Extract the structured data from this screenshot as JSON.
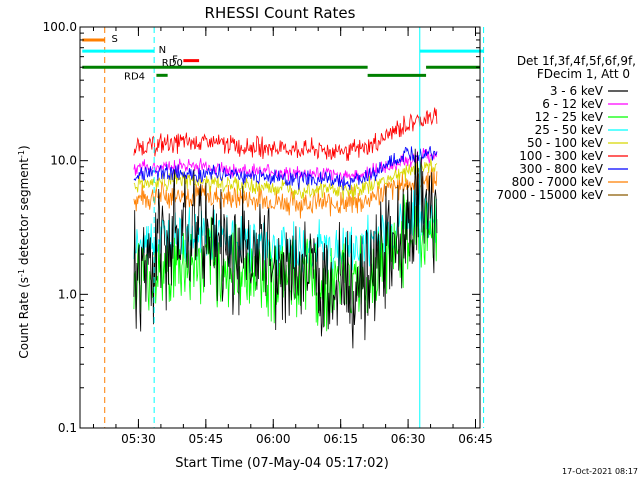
{
  "chart_data": {
    "type": "line",
    "title": "RHESSI Count Rates",
    "xlabel": "Start Time (07-May-04 05:17:02)",
    "ylabel": "Count Rate (s⁻¹ detector segment⁻¹)",
    "ylabel_parts": {
      "main": "Count Rate (s",
      "sup1": "-1",
      "mid": " detector segment",
      "sup2": "-1",
      "end": ")"
    },
    "x_unit": "minutes since 05:17:02",
    "xlim": [
      0,
      89
    ],
    "ylim": [
      0.1,
      100
    ],
    "y_scale": "log",
    "x_ticks": [
      {
        "x": 13,
        "label": "05:30"
      },
      {
        "x": 28,
        "label": "05:45"
      },
      {
        "x": 43,
        "label": "06:00"
      },
      {
        "x": 58,
        "label": "06:15"
      },
      {
        "x": 73,
        "label": "06:30"
      },
      {
        "x": 88,
        "label": "06:45"
      }
    ],
    "y_ticks": [
      {
        "y": 0.1,
        "label": "0.1"
      },
      {
        "y": 1.0,
        "label": "1.0"
      },
      {
        "y": 10.0,
        "label": "10.0"
      },
      {
        "y": 100.0,
        "label": "100.0"
      }
    ],
    "legend_header": [
      "Det 1f,3f,4f,5f,6f,9f,",
      "FDecim 1, Att 0"
    ],
    "legend_position": "right",
    "timestamp": "17-Oct-2021 08:17",
    "series": [
      {
        "name": "3 - 6 keV",
        "color": "#000000",
        "x": [
          12,
          15,
          18,
          21,
          24,
          27,
          30,
          33,
          36,
          39,
          42,
          45,
          48,
          51,
          54,
          57,
          60,
          63,
          66,
          69,
          72,
          75,
          78,
          79.5
        ],
        "y": [
          1.2,
          1.5,
          2.1,
          2.6,
          3.3,
          2.9,
          2.5,
          2.1,
          2.2,
          2.0,
          1.9,
          1.7,
          1.6,
          1.5,
          1.3,
          1.1,
          1.0,
          1.3,
          1.8,
          2.4,
          3.0,
          3.8,
          4.5,
          4.2
        ]
      },
      {
        "name": "6 - 12 keV",
        "color": "#ff00ff",
        "x": [
          12,
          15,
          18,
          21,
          24,
          27,
          30,
          33,
          36,
          39,
          42,
          45,
          48,
          51,
          54,
          57,
          60,
          63,
          66,
          69,
          72,
          75,
          78,
          79.5
        ],
        "y": [
          8.8,
          8.9,
          9.1,
          9.0,
          9.2,
          9.1,
          8.9,
          8.6,
          8.4,
          8.3,
          8.2,
          8.1,
          8.0,
          7.9,
          7.8,
          7.8,
          7.7,
          7.9,
          8.4,
          9.2,
          10.0,
          10.6,
          11.0,
          10.8
        ]
      },
      {
        "name": "12 - 25 keV",
        "color": "#00ff00",
        "x": [
          12,
          15,
          18,
          21,
          24,
          27,
          30,
          33,
          36,
          39,
          42,
          45,
          48,
          51,
          54,
          57,
          60,
          63,
          66,
          69,
          72,
          75,
          78,
          79.5
        ],
        "y": [
          1.3,
          1.4,
          1.5,
          1.6,
          1.7,
          1.7,
          1.6,
          1.5,
          1.5,
          1.4,
          1.4,
          1.3,
          1.3,
          1.3,
          1.2,
          1.2,
          1.2,
          1.3,
          1.6,
          2.0,
          2.4,
          2.8,
          3.1,
          3.2
        ]
      },
      {
        "name": "25 - 50 keV",
        "color": "#00ffff",
        "x": [
          12,
          15,
          18,
          21,
          24,
          27,
          30,
          33,
          36,
          39,
          42,
          45,
          48,
          51,
          54,
          57,
          60,
          63,
          66,
          69,
          72,
          75,
          78,
          79.5
        ],
        "y": [
          2.3,
          2.4,
          2.6,
          2.8,
          2.8,
          2.7,
          2.6,
          2.5,
          2.4,
          2.4,
          2.3,
          2.3,
          2.2,
          2.2,
          2.2,
          2.1,
          2.1,
          2.3,
          2.7,
          3.1,
          3.5,
          3.8,
          4.0,
          4.1
        ]
      },
      {
        "name": "50 - 100 keV",
        "color": "#d8d800",
        "x": [
          12,
          15,
          18,
          21,
          24,
          27,
          30,
          33,
          36,
          39,
          42,
          45,
          48,
          51,
          54,
          57,
          60,
          63,
          66,
          69,
          72,
          75,
          78,
          79.5
        ],
        "y": [
          6.6,
          6.8,
          7.0,
          7.1,
          7.0,
          6.9,
          6.8,
          6.6,
          6.5,
          6.4,
          6.3,
          6.3,
          6.2,
          6.2,
          6.1,
          6.1,
          6.0,
          6.2,
          6.8,
          7.4,
          8.2,
          8.8,
          9.3,
          9.2
        ]
      },
      {
        "name": "100 - 300 keV",
        "color": "#ff0000",
        "x": [
          12,
          15,
          18,
          21,
          24,
          27,
          30,
          33,
          36,
          39,
          42,
          45,
          48,
          51,
          54,
          57,
          60,
          63,
          66,
          69,
          72,
          75,
          78,
          79.5
        ],
        "y": [
          12.5,
          13.0,
          13.3,
          13.6,
          13.8,
          13.7,
          13.5,
          13.2,
          12.9,
          12.6,
          12.5,
          12.3,
          12.2,
          12.1,
          12.0,
          11.9,
          11.8,
          12.2,
          13.6,
          16.0,
          18.2,
          20.0,
          21.0,
          20.5
        ]
      },
      {
        "name": "300 - 800 keV",
        "color": "#0000ff",
        "x": [
          12,
          15,
          18,
          21,
          24,
          27,
          30,
          33,
          36,
          39,
          42,
          45,
          48,
          51,
          54,
          57,
          60,
          63,
          66,
          69,
          72,
          75,
          78,
          79.5
        ],
        "y": [
          7.8,
          8.0,
          8.1,
          8.2,
          8.2,
          8.1,
          8.0,
          7.9,
          7.8,
          7.6,
          7.5,
          7.4,
          7.3,
          7.2,
          7.2,
          7.1,
          7.0,
          7.3,
          8.2,
          9.4,
          10.6,
          11.4,
          11.8,
          11.6
        ]
      },
      {
        "name": "800 - 7000 keV",
        "color": "#ff7f00",
        "x": [
          12,
          15,
          18,
          21,
          24,
          27,
          30,
          33,
          36,
          39,
          42,
          45,
          48,
          51,
          54,
          57,
          60,
          63,
          66,
          69,
          72,
          75,
          78,
          79.5
        ],
        "y": [
          5.2,
          5.4,
          5.5,
          5.6,
          5.6,
          5.5,
          5.4,
          5.3,
          5.2,
          5.1,
          5.0,
          5.0,
          4.9,
          4.9,
          4.8,
          4.8,
          4.8,
          5.0,
          5.5,
          6.1,
          6.6,
          7.0,
          7.2,
          7.1
        ]
      },
      {
        "name": "7000 - 15000 keV",
        "color": "#8b5a00",
        "x": [],
        "y": []
      }
    ],
    "vlines": [
      {
        "x": 5.5,
        "color": "#ff7f00",
        "style": "dashed"
      },
      {
        "x": 16.5,
        "color": "#00ffff",
        "style": "dashed"
      },
      {
        "x": 75.6,
        "color": "#00ffff",
        "style": "solid"
      },
      {
        "x": 89.8,
        "color": "#00ffff",
        "style": "dashed"
      }
    ],
    "flag_bars": [
      {
        "label": "S",
        "color": "#ff7f00",
        "y": 80,
        "x0": 0.5,
        "x1": 5.5,
        "label_x": 7
      },
      {
        "label": "N",
        "color": "#00ffff",
        "y": 66,
        "x0": 0.5,
        "x1": 16.5,
        "label_x": 17.5
      },
      {
        "label": "",
        "color": "#00ffff",
        "y": 66,
        "x0": 75.6,
        "x1": 89.8,
        "label_x": 0
      },
      {
        "label": "F",
        "color": "#ff0000",
        "y": 56,
        "x0": 23,
        "x1": 26.5,
        "label_x": 20.5
      },
      {
        "label": "RD0",
        "color": "#008000",
        "y": 50,
        "x0": 0.5,
        "x1": 64,
        "label_x": 18.2
      },
      {
        "label": "",
        "color": "#008000",
        "y": 50,
        "x0": 77,
        "x1": 89,
        "label_x": 0
      },
      {
        "label": "RD4",
        "color": "#008000",
        "y": 43.5,
        "x0": 17,
        "x1": 19.5,
        "label_x": 9.8
      },
      {
        "label": "",
        "color": "#008000",
        "y": 43.5,
        "x0": 64,
        "x1": 77,
        "label_x": 0
      }
    ]
  }
}
